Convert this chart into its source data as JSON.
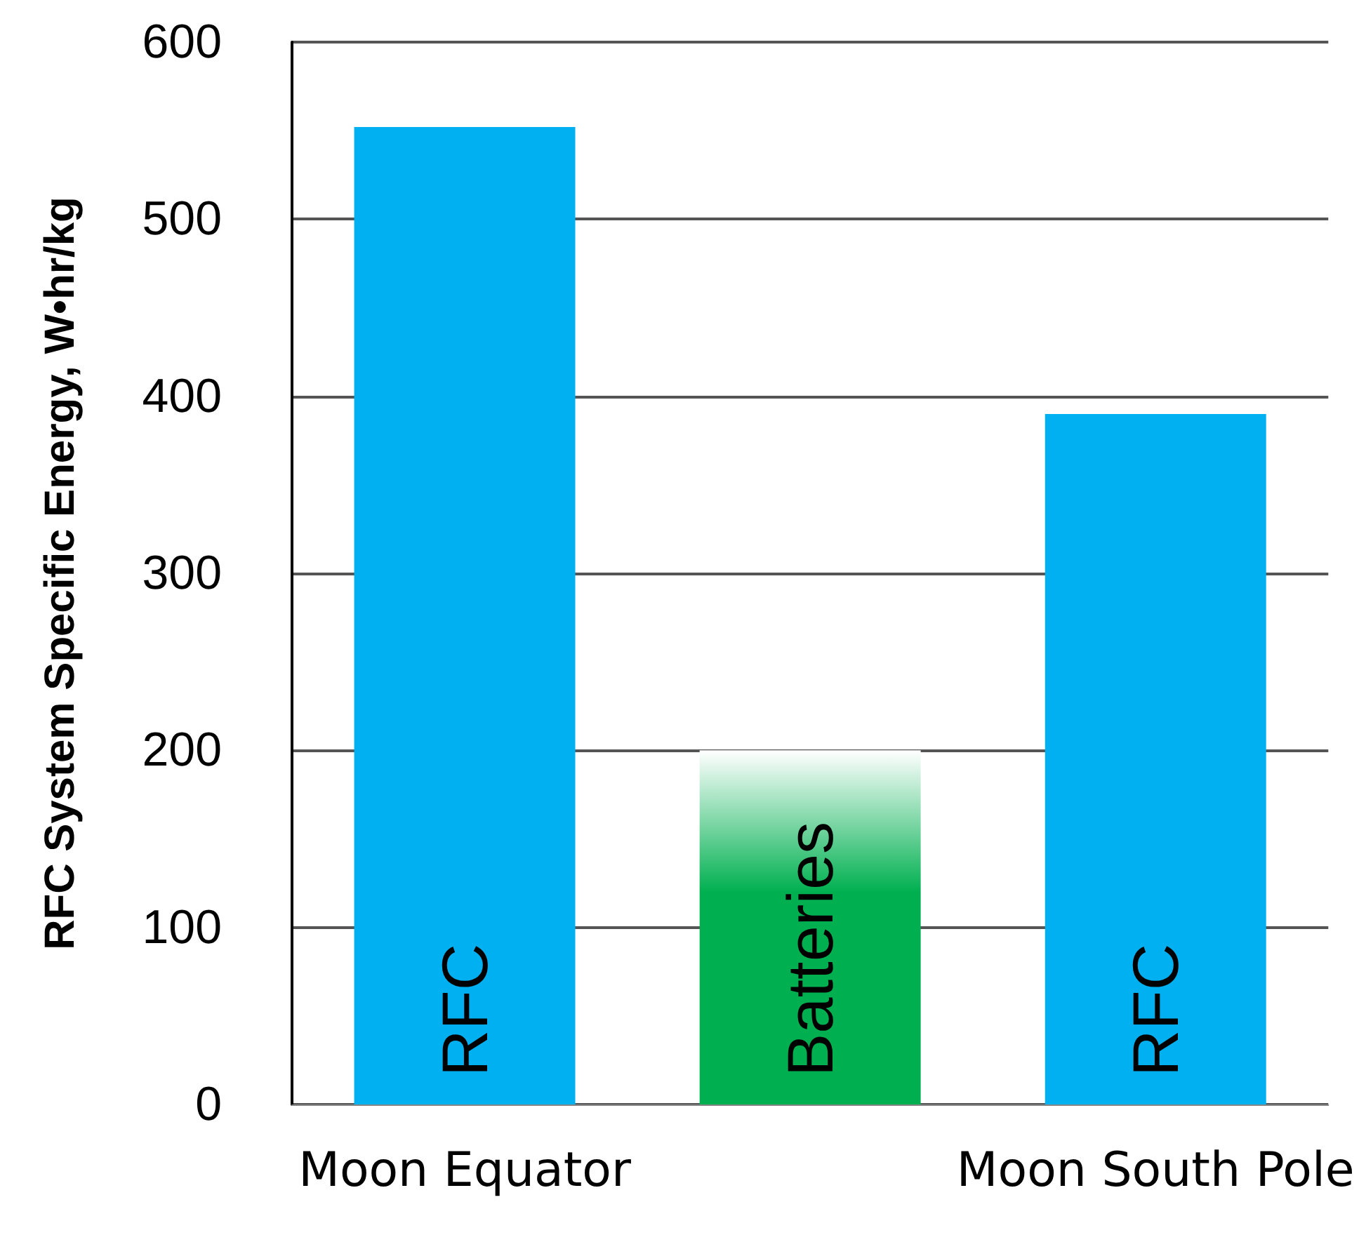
{
  "chart_data": {
    "type": "bar",
    "ylabel": "RFC System Specific Energy, W•hr/kg",
    "categories": [
      "Moon Equator",
      null,
      "Moon South Pole"
    ],
    "series": [
      {
        "name": "RFC",
        "color": "#00b0f0",
        "values": [
          552,
          null,
          390
        ]
      },
      {
        "name": "Batteries",
        "color": "#00b050",
        "values": [
          null,
          200,
          null
        ]
      }
    ],
    "ylim": [
      0,
      600
    ],
    "yticks": [
      0,
      100,
      200,
      300,
      400,
      500,
      600
    ],
    "grid": "y",
    "legend": false
  }
}
